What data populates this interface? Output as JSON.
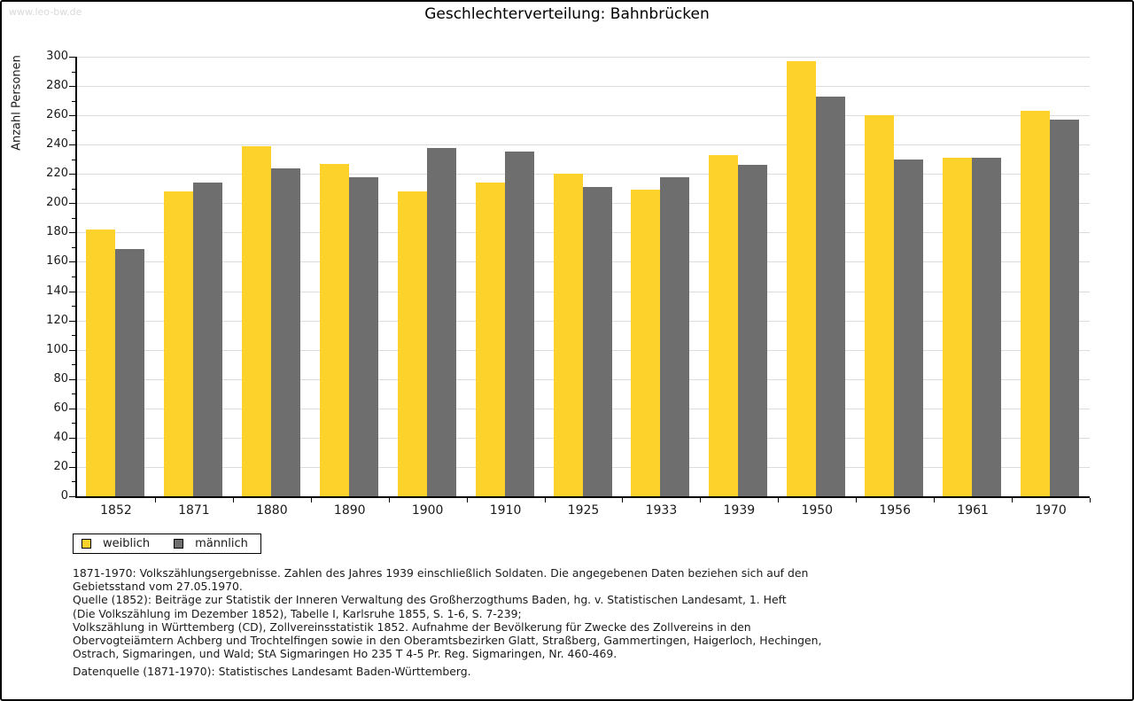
{
  "watermark": "www.leo-bw.de",
  "title": "Geschlechterverteilung: Bahnbrücken",
  "chart_data": {
    "type": "bar",
    "title": "Geschlechterverteilung: Bahnbrücken",
    "xlabel": "",
    "ylabel": "Anzahl Personen",
    "ylim": [
      0,
      300
    ],
    "ytick_step": 20,
    "ytick_minor_step": 10,
    "grid": true,
    "legend_position": "bottom-left",
    "categories": [
      "1852",
      "1871",
      "1880",
      "1890",
      "1900",
      "1910",
      "1925",
      "1933",
      "1939",
      "1950",
      "1956",
      "1961",
      "1970"
    ],
    "series": [
      {
        "name": "weiblich",
        "color": "#fdd32b",
        "values": [
          182,
          208,
          239,
          227,
          208,
          214,
          220,
          209,
          233,
          297,
          260,
          231,
          263
        ]
      },
      {
        "name": "männlich",
        "color": "#6e6e6e",
        "values": [
          169,
          214,
          224,
          218,
          238,
          235,
          211,
          218,
          226,
          273,
          230,
          231,
          257
        ]
      }
    ]
  },
  "legend": {
    "items": [
      {
        "label": "weiblich",
        "color": "#fdd32b"
      },
      {
        "label": "männlich",
        "color": "#6e6e6e"
      }
    ]
  },
  "footnotes": {
    "lines": [
      "1871-1970: Volkszählungsergebnisse. Zahlen des Jahres 1939 einschließlich Soldaten. Die angegebenen Daten beziehen sich auf den",
      "Gebietsstand vom 27.05.1970.",
      "Quelle (1852): Beiträge zur Statistik der Inneren Verwaltung des Großherzogthums Baden, hg. v. Statistischen Landesamt, 1. Heft",
      "(Die Volkszählung im Dezember 1852), Tabelle I, Karlsruhe 1855, S. 1-6, S. 7-239;",
      "Volkszählung in Württemberg (CD), Zollvereinsstatistik 1852. Aufnahme der Bevölkerung für Zwecke des Zollvereins in den",
      "Obervogteiämtern Achberg und Trochtelfingen sowie in den Oberamtsbezirken Glatt, Straßberg, Gammertingen, Haigerloch, Hechingen,",
      "Ostrach, Sigmaringen, und Wald; StA Sigmaringen Ho 235 T 4-5 Pr. Reg. Sigmaringen, Nr. 460-469."
    ],
    "datasource": "Datenquelle (1871-1970): Statistisches Landesamt Baden-Württemberg."
  },
  "colors": {
    "weiblich": "#fdd32b",
    "männlich": "#6e6e6e",
    "gridline": "#dcdcdc",
    "axis": "#000000",
    "text": "#1a1a1a",
    "watermark": "#d9d9d9",
    "background": "#ffffff"
  }
}
